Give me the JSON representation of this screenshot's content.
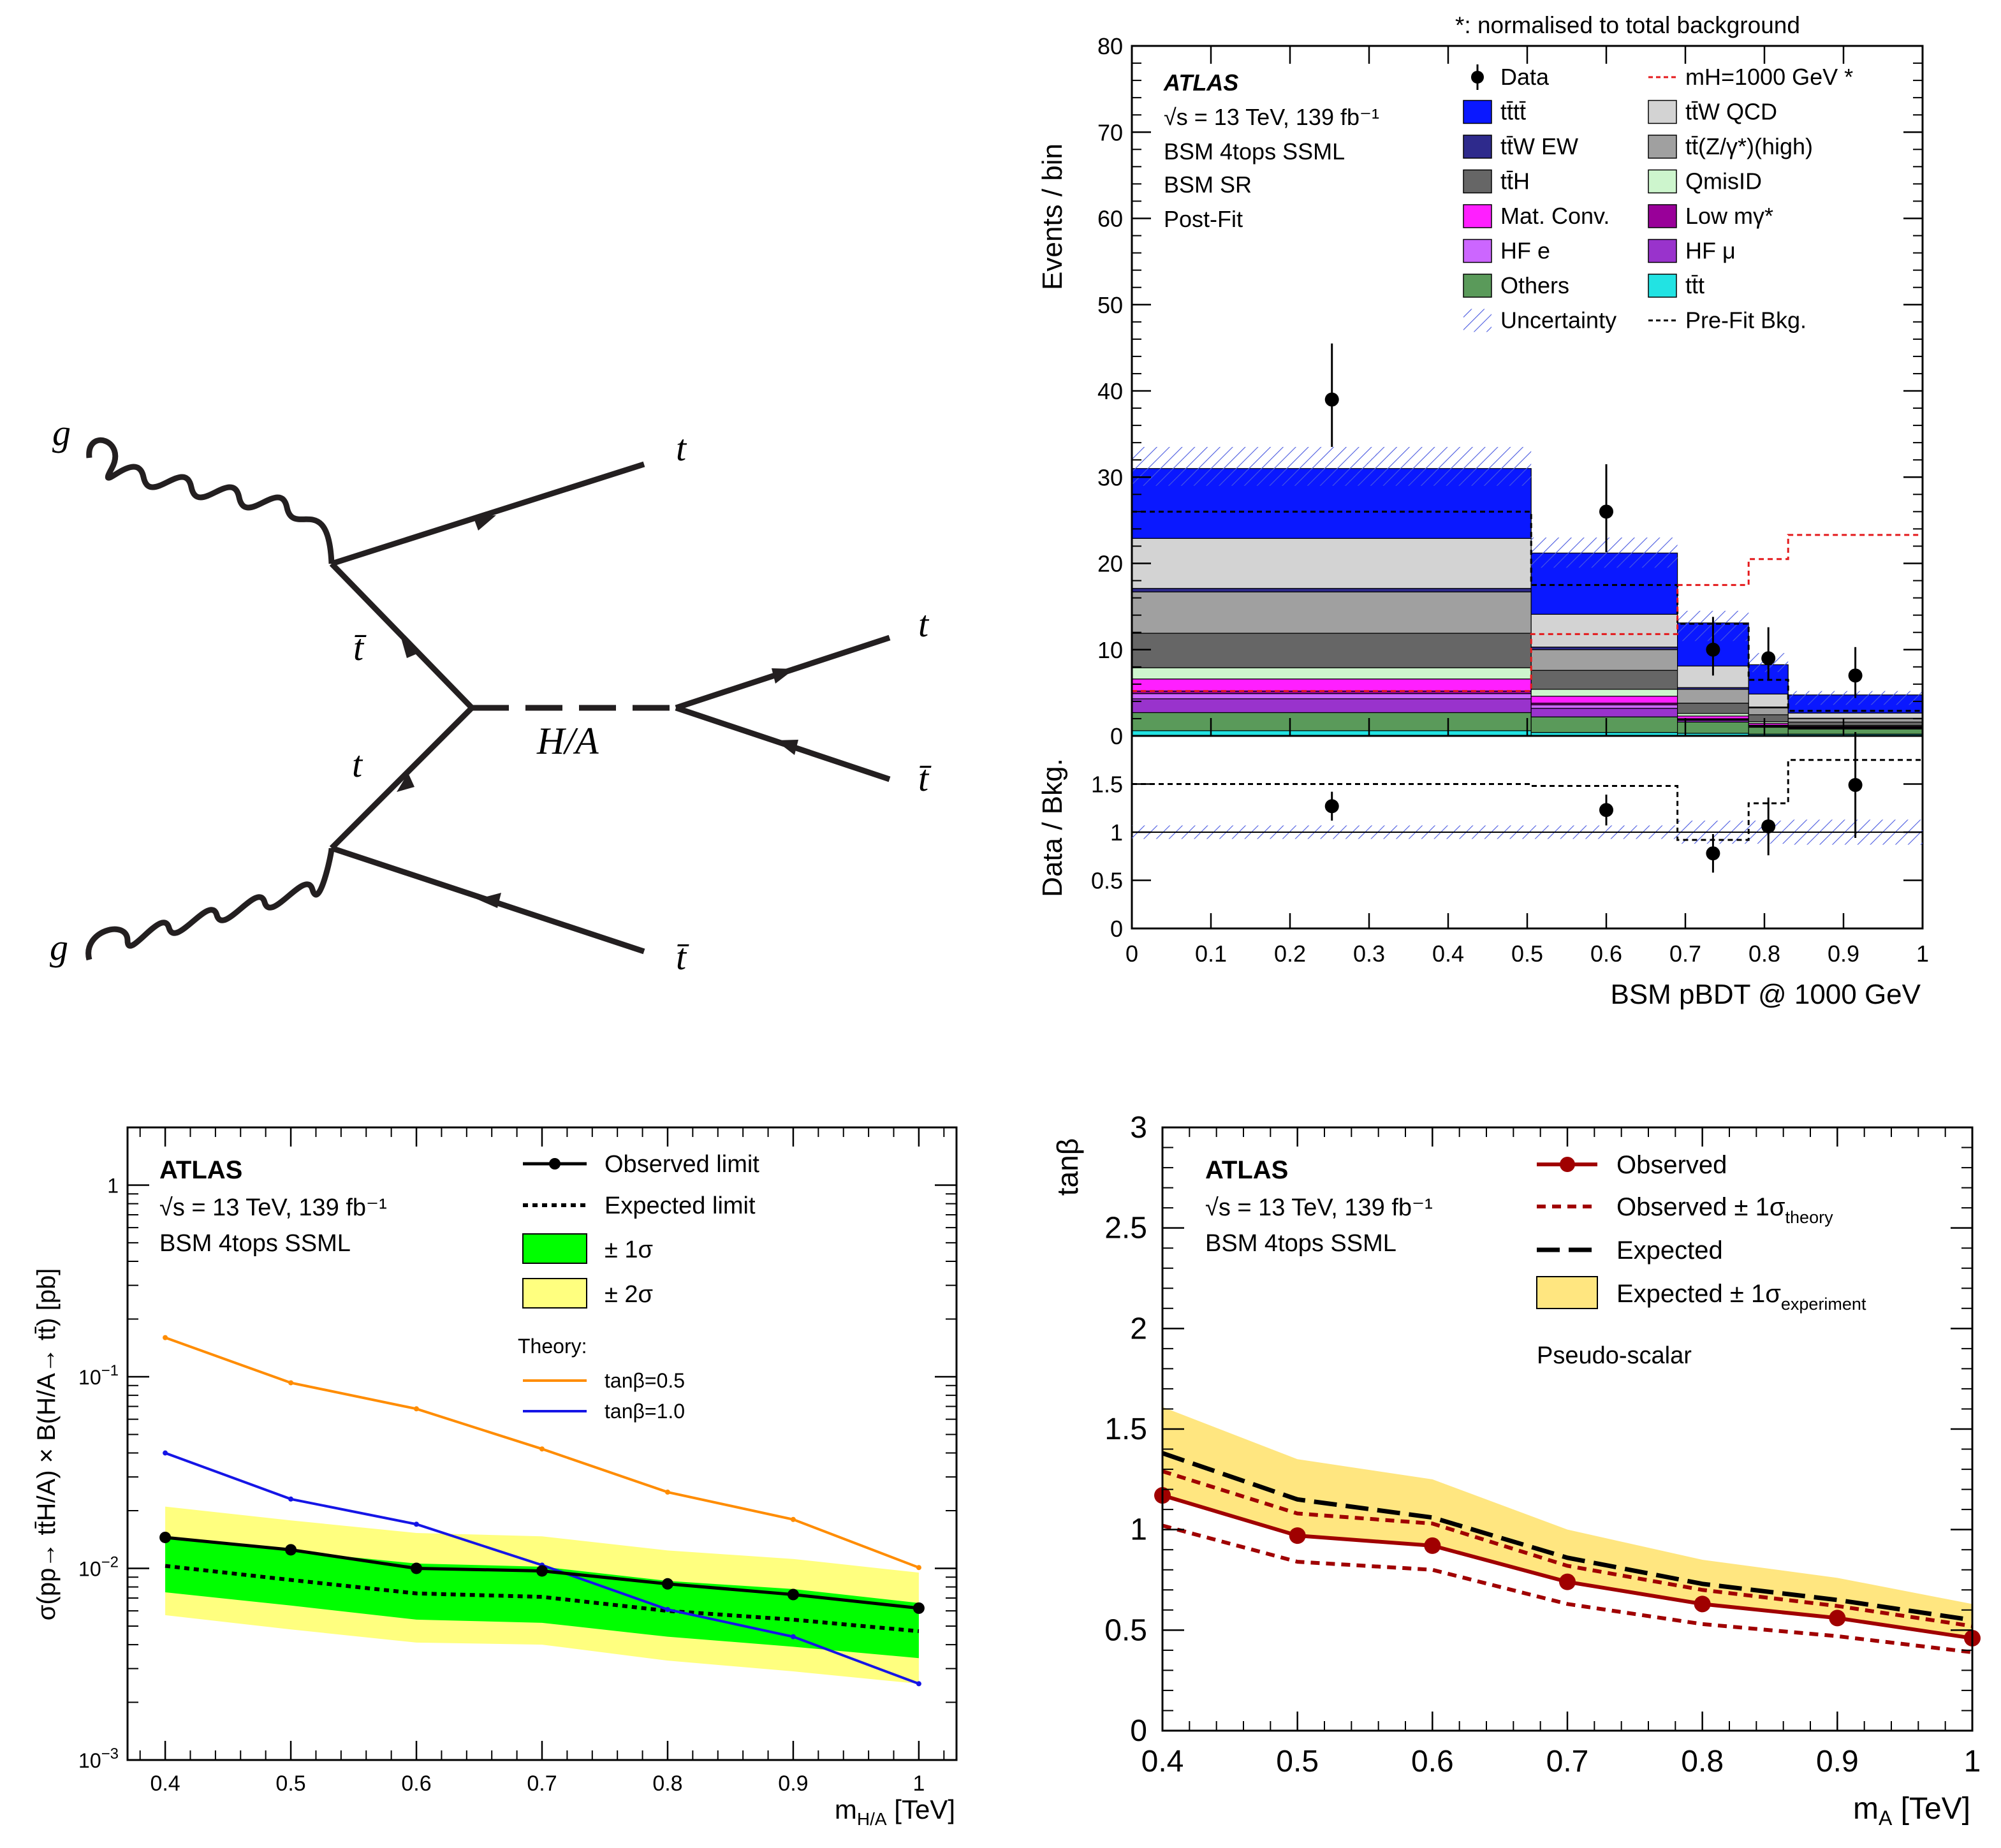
{
  "diagram": {
    "labels": {
      "g_top": "g",
      "g_bottom": "g",
      "t_out_top": "t",
      "tbar_internal_top": "t̄",
      "t_internal_bottom": "t",
      "tbar_out_bottom": "t̄",
      "mediator": "H/A",
      "t_decay": "t",
      "tbar_decay": "t̄"
    }
  },
  "chart_data": [
    {
      "type": "bar",
      "stacked": true,
      "note": "*: normalised to total background",
      "title_block": [
        "ATLAS",
        "√s = 13 TeV, 139 fb⁻¹",
        "BSM 4tops SSML",
        "BSM SR",
        "Post-Fit"
      ],
      "ylabel": "Events / bin",
      "ylim": [
        0,
        80
      ],
      "yticks": [
        "0",
        "10",
        "20",
        "30",
        "40",
        "50",
        "60",
        "70",
        "80"
      ],
      "ratio_ylabel": "Data / Bkg.",
      "ratio_ylim": [
        0,
        2
      ],
      "ratio_yticks": [
        "0",
        "0.5",
        "1",
        "1.5"
      ],
      "xlabel": "BSM pBDT @ 1000 GeV",
      "xlim": [
        0,
        1
      ],
      "xticks": [
        "0",
        "0.1",
        "0.2",
        "0.3",
        "0.4",
        "0.5",
        "0.6",
        "0.7",
        "0.8",
        "0.9",
        "1"
      ],
      "bin_edges": [
        0,
        0.505,
        0.69,
        0.78,
        0.83,
        1.0
      ],
      "legend": [
        {
          "name": "Data",
          "color": "#000000",
          "kind": "marker"
        },
        {
          "name": "mH=1000 GeV *",
          "color": "#e41a1c",
          "kind": "dashline"
        },
        {
          "name": "tt̄tt̄",
          "color": "#0a18ff",
          "kind": "box"
        },
        {
          "name": "tt̄W QCD",
          "color": "#d3d3d3",
          "kind": "box"
        },
        {
          "name": "tt̄W EW",
          "color": "#2e2a8c",
          "kind": "box"
        },
        {
          "name": "tt̄(Z/γ*)(high)",
          "color": "#a0a0a0",
          "kind": "box"
        },
        {
          "name": "tt̄H",
          "color": "#666666",
          "kind": "box"
        },
        {
          "name": "QmisID",
          "color": "#cdf5cd",
          "kind": "box"
        },
        {
          "name": "Mat. Conv.",
          "color": "#ff1fff",
          "kind": "box"
        },
        {
          "name": "Low mγ*",
          "color": "#990099",
          "kind": "box"
        },
        {
          "name": "HF e",
          "color": "#cc66ff",
          "kind": "box"
        },
        {
          "name": "HF μ",
          "color": "#9933cc",
          "kind": "box"
        },
        {
          "name": "Others",
          "color": "#5a9a5a",
          "kind": "box"
        },
        {
          "name": "tt̄t",
          "color": "#22e3e3",
          "kind": "box"
        },
        {
          "name": "Uncertainty",
          "color": "#4a5ae0",
          "kind": "hatch"
        },
        {
          "name": "Pre-Fit Bkg.",
          "color": "#000000",
          "kind": "dashline"
        }
      ],
      "stack_series": [
        {
          "name": "tt̄t",
          "color": "#22e3e3",
          "values": [
            0.6,
            0.4,
            0.3,
            0.2,
            0.2
          ]
        },
        {
          "name": "Others",
          "color": "#5a9a5a",
          "values": [
            2.1,
            1.8,
            1.3,
            0.8,
            0.6
          ]
        },
        {
          "name": "HF μ",
          "color": "#9933cc",
          "values": [
            1.6,
            1.0,
            0.2,
            0.1,
            0.1
          ]
        },
        {
          "name": "HF e",
          "color": "#cc66ff",
          "values": [
            0.6,
            0.4,
            0.1,
            0.1,
            0.05
          ]
        },
        {
          "name": "Low mγ*",
          "color": "#990099",
          "values": [
            0.3,
            0.2,
            0.1,
            0.05,
            0.05
          ]
        },
        {
          "name": "Mat. Conv.",
          "color": "#ff1fff",
          "values": [
            1.4,
            0.8,
            0.3,
            0.2,
            0.1
          ]
        },
        {
          "name": "QmisID",
          "color": "#cdf5cd",
          "values": [
            1.3,
            0.8,
            0.3,
            0.2,
            0.1
          ]
        },
        {
          "name": "tt̄H",
          "color": "#666666",
          "values": [
            4.0,
            2.2,
            1.2,
            0.8,
            0.4
          ]
        },
        {
          "name": "tt̄(Z/γ*)(high)",
          "color": "#a0a0a0",
          "values": [
            4.8,
            2.4,
            1.6,
            0.8,
            0.4
          ]
        },
        {
          "name": "tt̄W EW",
          "color": "#2e2a8c",
          "values": [
            0.4,
            0.3,
            0.2,
            0.1,
            0.05
          ]
        },
        {
          "name": "tt̄W QCD",
          "color": "#d3d3d3",
          "values": [
            5.8,
            3.8,
            2.5,
            1.5,
            0.6
          ]
        },
        {
          "name": "tt̄tt̄",
          "color": "#0a18ff",
          "values": [
            8.1,
            7.1,
            5.0,
            3.4,
            2.1
          ]
        }
      ],
      "uncertainty_band": {
        "low": [
          29,
          19.5,
          11,
          7.4,
          3.6
        ],
        "high": [
          33.5,
          23,
          14.5,
          9.6,
          5.2
        ]
      },
      "prefit_bkg": [
        26,
        17.5,
        13,
        6.5,
        2.9
      ],
      "signal_mH1000": [
        5.2,
        11.8,
        17.5,
        20.5,
        23.3
      ],
      "data": {
        "x": [
          0.253,
          0.6,
          0.735,
          0.805,
          0.915
        ],
        "y": [
          39,
          26,
          10,
          9,
          7
        ],
        "err_low": [
          5.5,
          4.7,
          3,
          2.5,
          2.6
        ],
        "err_high": [
          6.5,
          5.5,
          3.8,
          3.6,
          3.3
        ]
      },
      "ratio": {
        "x": [
          0.253,
          0.6,
          0.735,
          0.805,
          0.915
        ],
        "y": [
          1.27,
          1.23,
          0.78,
          1.06,
          1.49
        ],
        "err_low": [
          0.15,
          0.16,
          0.2,
          0.3,
          0.55
        ],
        "err_high": [
          0.15,
          0.16,
          0.2,
          0.3,
          0.55
        ],
        "prefit_ratio": [
          1.5,
          1.48,
          0.92,
          1.3,
          1.75
        ],
        "unc_low": [
          0.93,
          0.93,
          0.88,
          0.88,
          0.87
        ],
        "unc_high": [
          1.07,
          1.07,
          1.12,
          1.12,
          1.13
        ]
      }
    },
    {
      "type": "line",
      "yscale": "log",
      "title_block": [
        "ATLAS",
        "√s = 13 TeV, 139 fb⁻¹",
        "BSM 4tops SSML"
      ],
      "ylabel": "σ(pp→ tt̄H/A) × B(H/A→ tt̄) [pb]",
      "xlabel": "m",
      "xlabel_sub": "H/A",
      "xlabel_unit": " [TeV]",
      "xlim": [
        0.37,
        1.03
      ],
      "ylim": [
        0.001,
        2.0
      ],
      "xticks": [
        "0.4",
        "0.5",
        "0.6",
        "0.7",
        "0.8",
        "0.9",
        "1"
      ],
      "yticks": [
        {
          "v": 0.001,
          "label": "10",
          "exp": "−3"
        },
        {
          "v": 0.01,
          "label": "10",
          "exp": "−2"
        },
        {
          "v": 0.1,
          "label": "10",
          "exp": "−1"
        },
        {
          "v": 1,
          "label": "1",
          "exp": ""
        }
      ],
      "x": [
        0.4,
        0.5,
        0.6,
        0.7,
        0.8,
        0.9,
        1.0
      ],
      "observed": [
        0.0145,
        0.0125,
        0.01,
        0.0097,
        0.0083,
        0.0073,
        0.0062
      ],
      "expected": [
        0.0103,
        0.0087,
        0.0074,
        0.0071,
        0.006,
        0.0054,
        0.0047
      ],
      "band_1sigma": {
        "low": [
          0.0075,
          0.0064,
          0.0054,
          0.0052,
          0.0044,
          0.0039,
          0.0034
        ],
        "high": [
          0.0145,
          0.0123,
          0.0106,
          0.0102,
          0.0086,
          0.0078,
          0.0066
        ]
      },
      "band_2sigma": {
        "low": [
          0.0057,
          0.0048,
          0.0041,
          0.004,
          0.0033,
          0.0029,
          0.0025
        ],
        "high": [
          0.021,
          0.0178,
          0.0153,
          0.0147,
          0.0124,
          0.0112,
          0.0095
        ]
      },
      "theory_0p5": [
        0.16,
        0.093,
        0.068,
        0.042,
        0.025,
        0.018,
        0.0101
      ],
      "theory_1p0": [
        0.04,
        0.023,
        0.017,
        0.0104,
        0.0061,
        0.0044,
        0.0025
      ],
      "legend": {
        "observed": "Observed limit",
        "expected": "Expected limit",
        "s1": "± 1σ",
        "s2": "± 2σ",
        "theory_title": "Theory:",
        "t05": "tanβ=0.5",
        "t10": "tanβ=1.0"
      },
      "colors": {
        "s1": "#00ff00",
        "s2": "#ffff7f",
        "t05": "#ff8c00",
        "t10": "#1515e6",
        "obs": "#000000"
      }
    },
    {
      "type": "line",
      "title_block": [
        "ATLAS",
        "√s = 13 TeV, 139 fb⁻¹",
        "BSM 4tops SSML"
      ],
      "annotation": "Pseudo-scalar",
      "ylabel": "tanβ",
      "xlabel": "m",
      "xlabel_sub": "A",
      "xlabel_unit": " [TeV]",
      "xlim": [
        0.4,
        1.0
      ],
      "ylim": [
        0,
        3
      ],
      "xticks": [
        "0.4",
        "0.5",
        "0.6",
        "0.7",
        "0.8",
        "0.9",
        "1"
      ],
      "yticks": [
        "0",
        "0.5",
        "1",
        "1.5",
        "2",
        "2.5",
        "3"
      ],
      "x": [
        0.4,
        0.5,
        0.6,
        0.7,
        0.8,
        0.9,
        1.0
      ],
      "observed": [
        1.17,
        0.97,
        0.92,
        0.74,
        0.63,
        0.56,
        0.46
      ],
      "obs_theory_high": [
        1.29,
        1.08,
        1.03,
        0.82,
        0.7,
        0.62,
        0.52
      ],
      "obs_theory_low": [
        1.02,
        0.84,
        0.8,
        0.63,
        0.53,
        0.47,
        0.39
      ],
      "expected": [
        1.38,
        1.15,
        1.06,
        0.86,
        0.73,
        0.65,
        0.55
      ],
      "exp_band": {
        "low": [
          1.16,
          0.98,
          0.91,
          0.75,
          0.63,
          0.56,
          0.47
        ],
        "high": [
          1.61,
          1.35,
          1.25,
          1.0,
          0.85,
          0.76,
          0.63
        ]
      },
      "legend": {
        "observed": "Observed",
        "obs_theory": "Observed ± 1σ",
        "obs_theory_sub": "theory",
        "expected": "Expected",
        "band": "Expected ± 1σ",
        "band_sub": "experiment"
      },
      "colors": {
        "obs": "#a00000",
        "theory": "#a00000",
        "band": "#ffe680",
        "exp": "#000000"
      }
    }
  ]
}
